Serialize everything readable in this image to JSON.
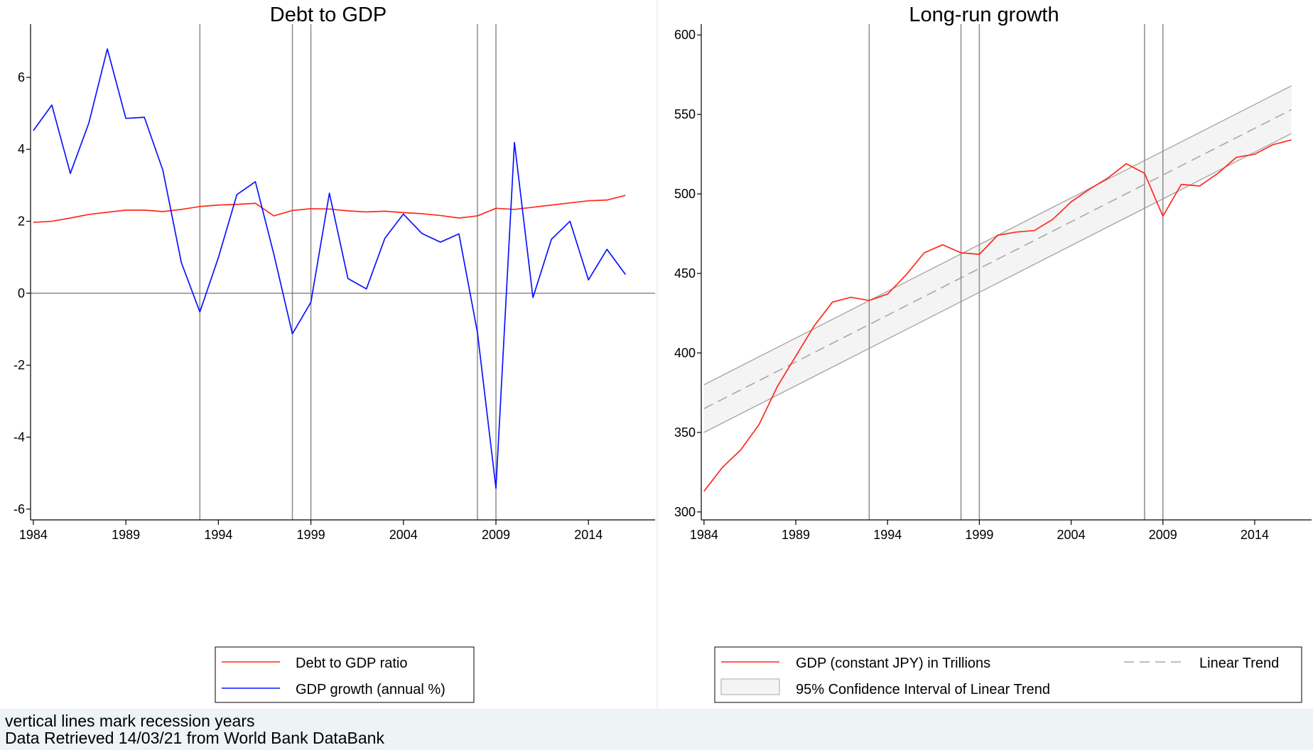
{
  "notes": {
    "line1": "vertical lines mark recession years",
    "line2": "Data Retrieved 14/03/21 from World Bank DataBank"
  },
  "colors": {
    "red": "#ff2a1a",
    "blue": "#0a14ff",
    "recession": "#8c8c8c",
    "trend": "#a8a8a8",
    "ci_fill": "#f4f4f4",
    "ci_edge": "#a8a8a8",
    "panel_bg": "#ffffff"
  },
  "chart_data": [
    {
      "type": "line",
      "title": "Debt to GDP",
      "xlabel": "",
      "ylabel": "",
      "xlim": [
        1983.85,
        2017.6
      ],
      "ylim": [
        -6.3,
        7.4
      ],
      "xticks": [
        1984,
        1989,
        1994,
        1999,
        2004,
        2009,
        2014
      ],
      "xtick_labels": [
        "1984",
        "1989",
        "1994",
        "1999",
        "2004",
        "2009",
        "2014"
      ],
      "yticks": [
        -6,
        -4,
        -2,
        0,
        2,
        4,
        6
      ],
      "ytick_labels": [
        "-6",
        "-4",
        "-2",
        "0",
        "2",
        "4",
        "6"
      ],
      "zero_line": true,
      "recession_years": [
        1993,
        1998,
        1999,
        2008,
        2009
      ],
      "legend_position": "bottom",
      "series": [
        {
          "name": "Debt to GDP ratio",
          "color": "red",
          "x": [
            1984,
            1985,
            1986,
            1987,
            1988,
            1989,
            1990,
            1991,
            1992,
            1993,
            1994,
            1995,
            1996,
            1997,
            1998,
            1999,
            2000,
            2001,
            2002,
            2003,
            2004,
            2005,
            2006,
            2007,
            2008,
            2009,
            2010,
            2011,
            2012,
            2013,
            2014,
            2015,
            2016
          ],
          "values": [
            1.97,
            2.0,
            2.09,
            2.19,
            2.25,
            2.31,
            2.31,
            2.27,
            2.33,
            2.41,
            2.45,
            2.47,
            2.5,
            2.15,
            2.3,
            2.35,
            2.34,
            2.29,
            2.26,
            2.28,
            2.24,
            2.21,
            2.16,
            2.09,
            2.15,
            2.36,
            2.33,
            2.39,
            2.45,
            2.51,
            2.57,
            2.59,
            2.72
          ]
        },
        {
          "name": "GDP growth (annual %)",
          "color": "blue",
          "x": [
            1984,
            1985,
            1986,
            1987,
            1988,
            1989,
            1990,
            1991,
            1992,
            1993,
            1994,
            1995,
            1996,
            1997,
            1998,
            1999,
            2000,
            2001,
            2002,
            2003,
            2004,
            2005,
            2006,
            2007,
            2008,
            2009,
            2010,
            2011,
            2012,
            2013,
            2014,
            2015,
            2016
          ],
          "values": [
            4.52,
            5.23,
            3.33,
            4.73,
            6.79,
            4.86,
            4.89,
            3.42,
            0.85,
            -0.52,
            0.99,
            2.74,
            3.1,
            1.08,
            -1.13,
            -0.25,
            2.78,
            0.41,
            0.12,
            1.53,
            2.2,
            1.66,
            1.42,
            1.65,
            -1.09,
            -5.42,
            4.19,
            -0.12,
            1.5,
            2.0,
            0.37,
            1.22,
            0.52
          ]
        }
      ]
    },
    {
      "type": "line",
      "title": "Long-run growth",
      "xlabel": "",
      "ylabel": "",
      "xlim": [
        1983.85,
        2017.1
      ],
      "ylim": [
        295,
        605
      ],
      "xticks": [
        1984,
        1989,
        1994,
        1999,
        2004,
        2009,
        2014
      ],
      "xtick_labels": [
        "1984",
        "1989",
        "1994",
        "1999",
        "2004",
        "2009",
        "2014"
      ],
      "yticks": [
        300,
        350,
        400,
        450,
        500,
        550,
        600
      ],
      "ytick_labels": [
        "300",
        "350",
        "400",
        "450",
        "500",
        "550",
        "600"
      ],
      "recession_years": [
        1993,
        1998,
        1999,
        2008,
        2009
      ],
      "legend_position": "bottom",
      "series": [
        {
          "name": "GDP (constant JPY) in Trillions",
          "color": "red",
          "x": [
            1984,
            1985,
            1986,
            1987,
            1988,
            1989,
            1990,
            1991,
            1992,
            1993,
            1994,
            1995,
            1996,
            1997,
            1998,
            1999,
            2000,
            2001,
            2002,
            2003,
            2004,
            2005,
            2006,
            2007,
            2008,
            2009,
            2010,
            2011,
            2012,
            2013,
            2014,
            2015,
            2016
          ],
          "values": [
            313,
            328,
            339,
            355,
            379,
            398,
            417,
            432,
            435,
            433,
            437,
            449,
            463,
            468,
            463,
            462,
            474,
            476,
            477,
            484,
            495,
            503,
            510,
            519,
            513,
            486,
            506,
            505,
            513,
            523,
            525,
            531,
            534
          ]
        }
      ],
      "trend": {
        "name": "Linear Trend",
        "x": [
          1984,
          2016
        ],
        "values": [
          365,
          553
        ],
        "ci_name": "95% Confidence Interval of Linear Trend",
        "ci_lower": [
          350,
          538
        ],
        "ci_upper": [
          380,
          568
        ]
      }
    }
  ]
}
